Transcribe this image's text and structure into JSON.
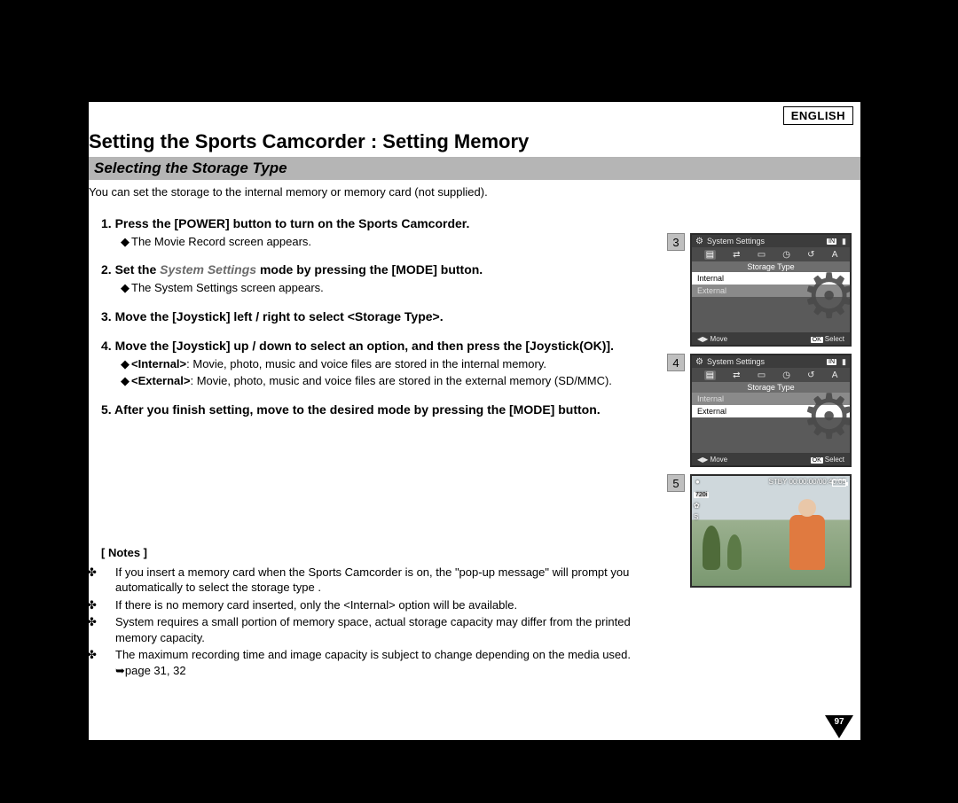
{
  "language_tag": "ENGLISH",
  "heading": "Setting the Sports Camcorder : Setting Memory",
  "subheading": "Selecting the Storage Type",
  "intro": "You can set the storage to the internal memory or memory card (not supplied).",
  "steps": {
    "s1": {
      "head": "1. Press the [POWER] button to turn on the Sports Camcorder.",
      "sub1": "The Movie Record screen appears."
    },
    "s2": {
      "head_pre": "2. Set the ",
      "head_em": "System Settings",
      "head_post": " mode by pressing the [MODE] button.",
      "sub1": "The System Settings screen appears."
    },
    "s3": {
      "head": "3. Move the [Joystick] left / right to select <Storage Type>."
    },
    "s4": {
      "head": "4. Move the [Joystick] up / down to select an option, and then press the [Joystick(OK)].",
      "sub1_k": "<Internal>",
      "sub1_t": ": Movie, photo, music and voice files are stored in the internal memory.",
      "sub2_k": "<External>",
      "sub2_t": ": Movie, photo, music and voice files are stored in the external memory (SD/MMC)."
    },
    "s5": {
      "head": "5. After you finish setting, move to the desired mode by pressing the [MODE] button."
    }
  },
  "notes": {
    "title": "[ Notes ]",
    "n1": "If you insert a memory card when the Sports Camcorder is on, the \"pop-up message\" will prompt you automatically to select the storage type .",
    "n2": "If there is no memory card inserted, only the <Internal> option will be available.",
    "n3": "System requires a small portion of memory space, actual storage capacity may differ from the printed memory capacity.",
    "n4": "The maximum recording time and image capacity is subject to change depending on the media used. ➥page 31, 32"
  },
  "page_number": "97",
  "bullet_diamond": "◆",
  "bullet_clover": "✤",
  "lcd": {
    "title": "System Settings",
    "category": "Storage Type",
    "opt_internal": "Internal",
    "opt_external": "External",
    "move": "Move",
    "select": "Select",
    "ok": "OK",
    "in_badge": "IN",
    "shot3_num": "3",
    "shot4_num": "4",
    "shot5_num": "5",
    "stby": "STBY 00:00:00/00:40:05",
    "res": "720i",
    "rec_icon": "●",
    "sepia": "S"
  },
  "colors": {
    "page_bg": "#ffffff",
    "outer_bg": "#000000",
    "band_bg": "#b5b5b5",
    "em_text": "#6a6a6a",
    "lcd_bg": "#5a5a5a",
    "lcd_bar": "#3c3c3c"
  }
}
